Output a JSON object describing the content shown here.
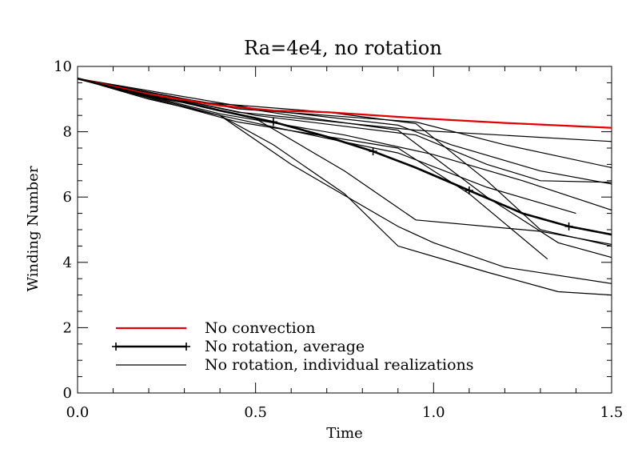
{
  "chart_data": {
    "type": "line",
    "title": "Ra=4e4, no rotation",
    "xlabel": "Time",
    "ylabel": "Winding Number",
    "xlim": [
      0,
      1.5
    ],
    "ylim": [
      0,
      10
    ],
    "xticks": [
      0.0,
      0.5,
      1.0,
      1.5
    ],
    "xtick_labels": [
      "0.0",
      "0.5",
      "1.0",
      "1.5"
    ],
    "yticks": [
      0,
      2,
      4,
      6,
      8,
      10
    ],
    "ytick_labels": [
      "0",
      "2",
      "4",
      "6",
      "8",
      "10"
    ],
    "grid": false,
    "legend_placement": "bottom-left",
    "series": [
      {
        "name": "No convection",
        "style": "red",
        "color": "#e00000",
        "points": [
          [
            0.0,
            9.63
          ],
          [
            0.2,
            9.15
          ],
          [
            0.4,
            8.8
          ],
          [
            0.55,
            8.65
          ],
          [
            0.7,
            8.6
          ],
          [
            0.95,
            8.42
          ],
          [
            1.2,
            8.27
          ],
          [
            1.5,
            8.12
          ]
        ]
      },
      {
        "name": "No rotation, average",
        "style": "average",
        "color": "#000000",
        "points": [
          [
            0.0,
            9.63
          ],
          [
            0.1,
            9.35
          ],
          [
            0.2,
            9.1
          ],
          [
            0.3,
            8.9
          ],
          [
            0.4,
            8.65
          ],
          [
            0.55,
            8.3
          ],
          [
            0.7,
            7.85
          ],
          [
            0.83,
            7.4
          ],
          [
            0.95,
            6.9
          ],
          [
            1.1,
            6.2
          ],
          [
            1.25,
            5.5
          ],
          [
            1.38,
            5.1
          ],
          [
            1.5,
            4.85
          ]
        ],
        "marker_x": [
          0.55,
          0.83,
          1.1,
          1.38
        ]
      },
      {
        "name": "No rotation, individual realizations",
        "style": "thin",
        "color": "#000000",
        "realizations": [
          [
            [
              0.0,
              9.63
            ],
            [
              0.45,
              8.6
            ],
            [
              0.95,
              8.05
            ],
            [
              1.5,
              7.7
            ]
          ],
          [
            [
              0.0,
              9.63
            ],
            [
              0.45,
              8.7
            ],
            [
              0.95,
              8.3
            ],
            [
              1.2,
              7.6
            ],
            [
              1.5,
              6.9
            ]
          ],
          [
            [
              0.0,
              9.63
            ],
            [
              0.5,
              8.7
            ],
            [
              0.9,
              8.2
            ],
            [
              1.05,
              7.6
            ],
            [
              1.3,
              6.8
            ],
            [
              1.5,
              6.4
            ]
          ],
          [
            [
              0.0,
              9.63
            ],
            [
              0.5,
              8.5
            ],
            [
              0.95,
              7.9
            ],
            [
              1.15,
              7.0
            ],
            [
              1.3,
              6.5
            ],
            [
              1.5,
              6.45
            ]
          ],
          [
            [
              0.0,
              9.63
            ],
            [
              0.4,
              8.55
            ],
            [
              0.75,
              7.9
            ],
            [
              1.0,
              7.3
            ],
            [
              1.25,
              6.5
            ],
            [
              1.5,
              5.6
            ]
          ],
          [
            [
              0.0,
              9.63
            ],
            [
              0.4,
              8.5
            ],
            [
              0.7,
              7.8
            ],
            [
              0.9,
              7.35
            ],
            [
              1.15,
              6.3
            ],
            [
              1.4,
              5.5
            ]
          ],
          [
            [
              0.0,
              9.63
            ],
            [
              0.45,
              8.3
            ],
            [
              0.9,
              7.5
            ],
            [
              1.1,
              6.1
            ],
            [
              1.32,
              4.1
            ]
          ],
          [
            [
              0.0,
              9.63
            ],
            [
              0.3,
              9.0
            ],
            [
              0.6,
              8.5
            ],
            [
              0.9,
              8.05
            ],
            [
              1.15,
              6.0
            ],
            [
              1.35,
              4.6
            ],
            [
              1.5,
              4.15
            ]
          ],
          [
            [
              0.0,
              9.63
            ],
            [
              0.35,
              8.9
            ],
            [
              0.7,
              8.6
            ],
            [
              0.95,
              8.25
            ],
            [
              1.15,
              6.5
            ],
            [
              1.3,
              5.0
            ],
            [
              1.5,
              4.5
            ]
          ],
          [
            [
              0.0,
              9.63
            ],
            [
              0.3,
              8.9
            ],
            [
              0.5,
              8.4
            ],
            [
              0.75,
              6.8
            ],
            [
              0.95,
              5.3
            ],
            [
              1.3,
              4.95
            ],
            [
              1.5,
              4.55
            ]
          ],
          [
            [
              0.0,
              9.63
            ],
            [
              0.2,
              9.0
            ],
            [
              0.4,
              8.5
            ],
            [
              0.6,
              7.0
            ],
            [
              0.9,
              5.1
            ],
            [
              1.0,
              4.6
            ],
            [
              1.2,
              3.85
            ],
            [
              1.5,
              3.35
            ]
          ],
          [
            [
              0.0,
              9.63
            ],
            [
              0.2,
              9.0
            ],
            [
              0.4,
              8.5
            ],
            [
              0.55,
              7.6
            ],
            [
              0.75,
              6.1
            ],
            [
              0.9,
              4.5
            ],
            [
              1.15,
              3.7
            ],
            [
              1.35,
              3.1
            ],
            [
              1.5,
              3.0
            ]
          ]
        ]
      }
    ]
  }
}
